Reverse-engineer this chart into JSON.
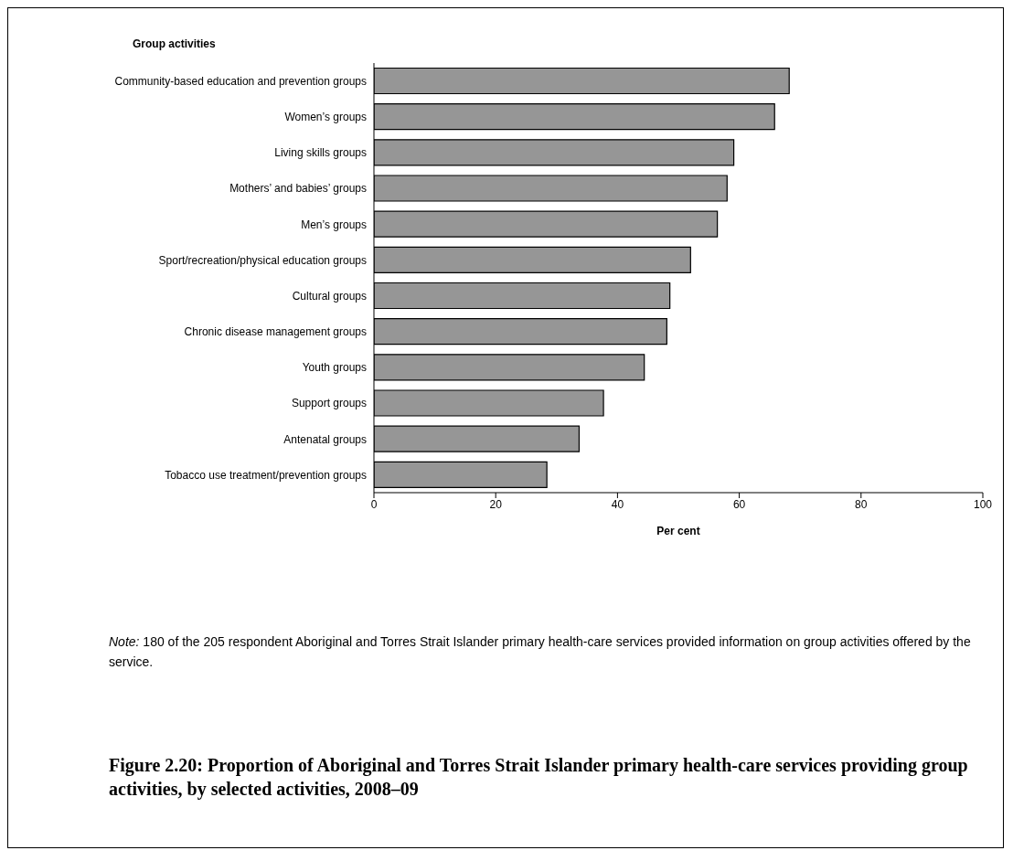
{
  "chart_data": {
    "type": "bar",
    "orientation": "horizontal",
    "title": "Figure 2.20: Proportion of Aboriginal and Torres Strait Islander primary health-care services providing group activities, by selected activities, 2008–09",
    "ylabel": "Group activities",
    "xlabel": "Per cent",
    "categories": [
      "Community-based education and prevention groups",
      "Women’s groups",
      "Living skills groups",
      "Mothers’ and babies’ groups",
      "Men’s groups",
      "Sport/recreation/physical education groups",
      "Cultural groups",
      "Chronic disease management groups",
      "Youth groups",
      "Support groups",
      "Antenatal groups",
      "Tobacco use treatment/prevention groups"
    ],
    "values": [
      68.2,
      65.8,
      59.1,
      58.0,
      56.4,
      52.0,
      48.6,
      48.1,
      44.4,
      37.7,
      33.7,
      28.4
    ],
    "color": "#969696",
    "xlim": [
      0,
      100
    ],
    "xticks": [
      0,
      20,
      40,
      60,
      80,
      100
    ],
    "grid": false,
    "legend": false,
    "annotations": [
      "Note: 180 of the 205 respondent Aboriginal and Torres Strait Islander primary health-care services provided information on group activities offered by the service."
    ]
  }
}
